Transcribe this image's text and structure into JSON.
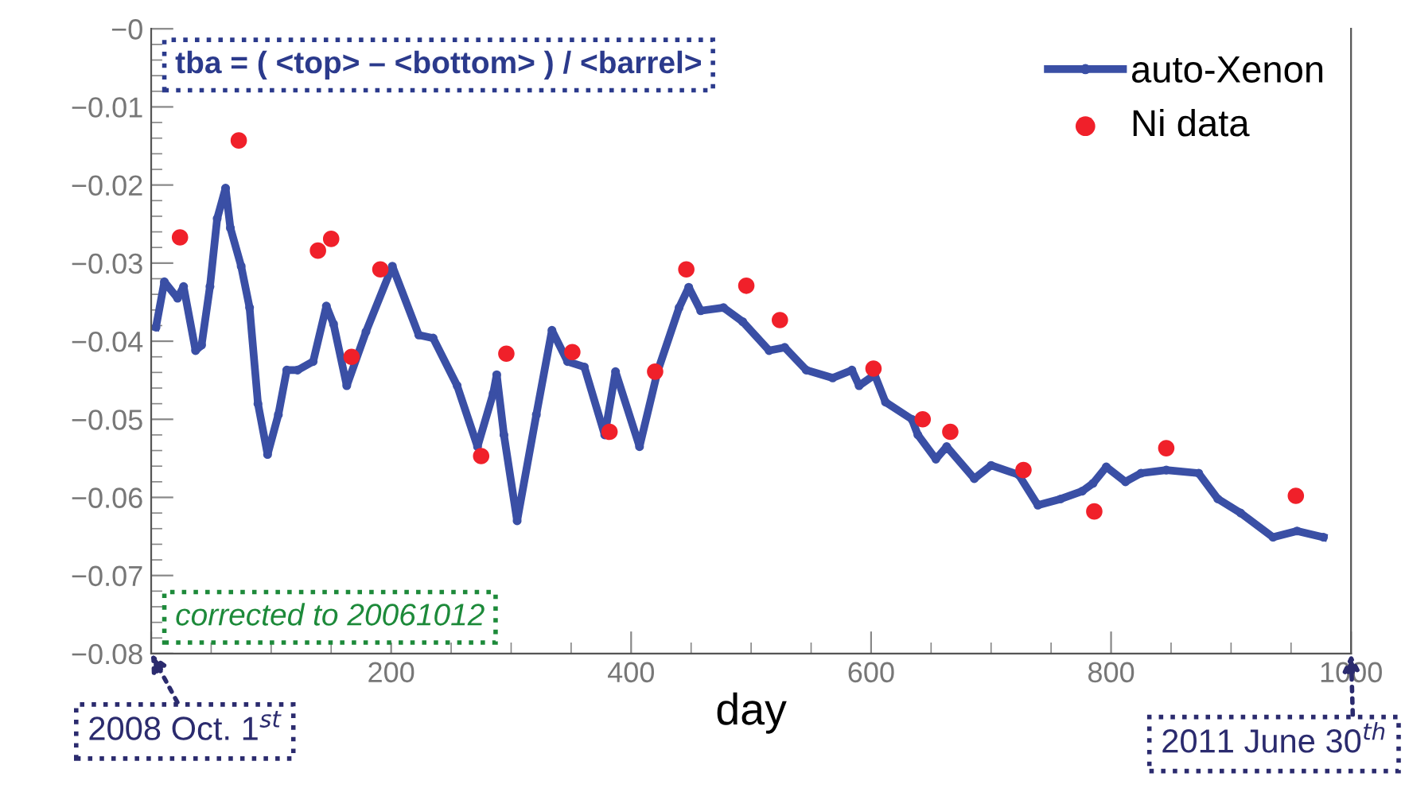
{
  "chart_data": {
    "type": "scatter",
    "xlabel": "day",
    "xlim": [
      0,
      1000
    ],
    "ylim": [
      -0.08,
      0
    ],
    "xticks": [
      {
        "value": 0,
        "label": null
      },
      200,
      400,
      600,
      800,
      1000
    ],
    "yticks": [
      {
        "value": 0,
        "label": "−0"
      },
      {
        "value": -0.01,
        "label": "−0.01"
      },
      {
        "value": -0.02,
        "label": "−0.02"
      },
      {
        "value": -0.03,
        "label": "−0.03"
      },
      {
        "value": -0.04,
        "label": "−0.04"
      },
      {
        "value": -0.05,
        "label": "−0.05"
      },
      {
        "value": -0.06,
        "label": "−0.06"
      },
      {
        "value": -0.07,
        "label": "−0.07"
      },
      {
        "value": -0.08,
        "label": "−0.08"
      }
    ],
    "grid": false,
    "legend": "top right",
    "marker": "circle",
    "series": [
      {
        "name": "auto-Xenon",
        "type": "line",
        "color": "#3a4fa5",
        "x": [
          4,
          11,
          22,
          27,
          37,
          42,
          49,
          55,
          62,
          66,
          75,
          82,
          89,
          97,
          106,
          113,
          122,
          135,
          146,
          152,
          163,
          179,
          201,
          223,
          235,
          255,
          272,
          285,
          288,
          294,
          305,
          321,
          334,
          347,
          361,
          378,
          387,
          407,
          422,
          440,
          448,
          458,
          477,
          493,
          515,
          528,
          546,
          568,
          584,
          590,
          603,
          612,
          634,
          639,
          654,
          663,
          686,
          700,
          723,
          739,
          758,
          776,
          785,
          796,
          812,
          825,
          846,
          873,
          889,
          908,
          935,
          955,
          977
        ],
        "values": [
          -0.0382,
          -0.0324,
          -0.0345,
          -0.033,
          -0.0412,
          -0.0405,
          -0.033,
          -0.0243,
          -0.0204,
          -0.0255,
          -0.0304,
          -0.0357,
          -0.048,
          -0.0545,
          -0.0494,
          -0.0437,
          -0.0437,
          -0.0426,
          -0.0355,
          -0.0378,
          -0.0457,
          -0.0388,
          -0.0304,
          -0.0392,
          -0.0396,
          -0.0457,
          -0.0535,
          -0.0467,
          -0.0443,
          -0.052,
          -0.063,
          -0.0494,
          -0.0386,
          -0.0426,
          -0.0433,
          -0.052,
          -0.0439,
          -0.0535,
          -0.0439,
          -0.0357,
          -0.0331,
          -0.0361,
          -0.0357,
          -0.0375,
          -0.0412,
          -0.0408,
          -0.0437,
          -0.0447,
          -0.0437,
          -0.0457,
          -0.0443,
          -0.0478,
          -0.05,
          -0.052,
          -0.0551,
          -0.0535,
          -0.0576,
          -0.0559,
          -0.0571,
          -0.061,
          -0.0602,
          -0.0592,
          -0.0582,
          -0.0561,
          -0.058,
          -0.0569,
          -0.0565,
          -0.0569,
          -0.0602,
          -0.062,
          -0.0651,
          -0.0643,
          -0.0651
        ]
      },
      {
        "name": "Ni data",
        "color": "#f0202a",
        "x": [
          24,
          73,
          139,
          150,
          167,
          191,
          275,
          296,
          351,
          382,
          420,
          446,
          496,
          524,
          602,
          643,
          666,
          727,
          786,
          846,
          954
        ],
        "values": [
          -0.0267,
          -0.0143,
          -0.0284,
          -0.0269,
          -0.042,
          -0.0308,
          -0.0547,
          -0.0416,
          -0.0414,
          -0.0516,
          -0.0439,
          -0.0308,
          -0.0329,
          -0.0373,
          -0.0435,
          -0.05,
          -0.0516,
          -0.0565,
          -0.0618,
          -0.0537,
          -0.0598
        ]
      }
    ],
    "annotations": [
      "tba = ( <top> – <bottom> ) / <barrel>",
      "corrected to 20061012",
      "2008 Oct. 1$^{st}$",
      "2011 June 30$^{th}$"
    ]
  }
}
